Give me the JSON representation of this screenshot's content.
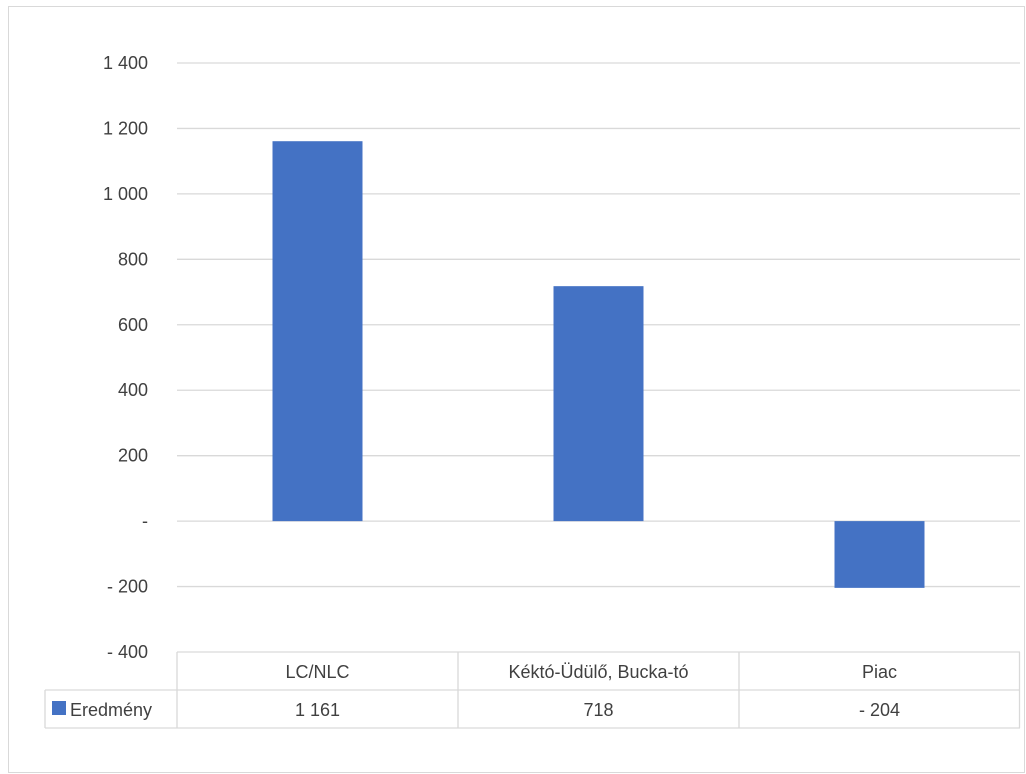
{
  "chart_data": {
    "type": "bar",
    "categories": [
      "LC/NLC",
      "Kéktó-Üdülő, Bucka-tó",
      "Piac"
    ],
    "series": [
      {
        "name": "Eredmény",
        "values": [
          1161,
          718,
          -204
        ],
        "value_labels": [
          "1 161",
          "718",
          "- 204"
        ],
        "color": "#4472c4"
      }
    ],
    "ylim": [
      -400,
      1400
    ],
    "yticks": [
      {
        "value": 1400,
        "label": "1 400"
      },
      {
        "value": 1200,
        "label": "1 200"
      },
      {
        "value": 1000,
        "label": "1 000"
      },
      {
        "value": 800,
        "label": "800"
      },
      {
        "value": 600,
        "label": "600"
      },
      {
        "value": 400,
        "label": "400"
      },
      {
        "value": 200,
        "label": "200"
      },
      {
        "value": 0,
        "label": "-"
      },
      {
        "value": -200,
        "label": "- 200"
      },
      {
        "value": -400,
        "label": "- 400"
      }
    ],
    "grid": true,
    "legend_placement": "data-table",
    "data_table": true
  }
}
